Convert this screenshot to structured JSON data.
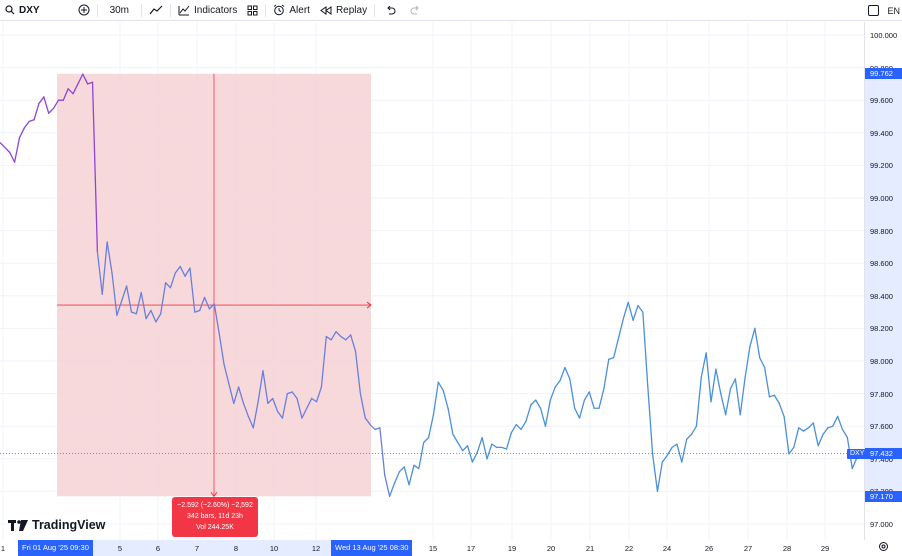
{
  "toolbar": {
    "symbol": "DXY",
    "interval": "30m",
    "indicators_label": "Indicators",
    "alert_label": "Alert",
    "replay_label": "Replay",
    "language": "EN"
  },
  "price_axis": {
    "labels": [
      "100.000",
      "99.800",
      "99.600",
      "99.400",
      "99.200",
      "99.000",
      "98.800",
      "98.600",
      "98.400",
      "98.200",
      "98.000",
      "97.800",
      "97.600",
      "97.400",
      "97.200",
      "97.000"
    ],
    "range_high": "99.762",
    "range_low": "97.170",
    "current": "97.432"
  },
  "time_axis": {
    "labels": [
      "1",
      "5",
      "6",
      "7",
      "8",
      "10",
      "12",
      "15",
      "17",
      "19",
      "20",
      "21",
      "22",
      "24",
      "26",
      "27",
      "28",
      "29"
    ],
    "start_tag": "Fri 01 Aug '25   09:30",
    "end_tag": "Wed 13 Aug '25   08:30"
  },
  "measure": {
    "line1": "−2.592 (−2.60%) −2,592",
    "line2": "342 bars, 11d 23h",
    "line3": "Vol 244.25K"
  },
  "ticker_tag": "DXY",
  "brand": "TradingView",
  "colors": {
    "line_before": "#8e44d6",
    "line_after": "#4a90d9",
    "measure_fill": "#f6d5d8",
    "measure_red": "#f23645",
    "accent": "#2962ff"
  },
  "chart_data": {
    "type": "line",
    "ylim": [
      97.0,
      100.0
    ],
    "series": [
      {
        "values": [
          99.34,
          99.31,
          99.28,
          99.22,
          99.37,
          99.43,
          99.47,
          99.48,
          99.58,
          99.62,
          99.52,
          99.55,
          99.6,
          99.6,
          99.67,
          99.64,
          99.7,
          99.76,
          99.7,
          99.71,
          98.67,
          98.41,
          98.73,
          98.54,
          98.28,
          98.37,
          98.46,
          98.3,
          98.29,
          98.42,
          98.26,
          98.31,
          98.24,
          98.29,
          98.48,
          98.45,
          98.54,
          98.58,
          98.52,
          98.57,
          98.3,
          98.31,
          98.39,
          98.32,
          98.35,
          98.17,
          97.98,
          97.86,
          97.74,
          97.84,
          97.74,
          97.66,
          97.59,
          97.75,
          97.94,
          97.74,
          97.77,
          97.69,
          97.65,
          97.8,
          97.81,
          97.77,
          97.65,
          97.71,
          97.77,
          97.75,
          97.84,
          98.15,
          98.13,
          98.18,
          98.15,
          98.13,
          98.16,
          98.06,
          97.8,
          97.65,
          97.61,
          97.58,
          97.59,
          97.3,
          97.17,
          97.25,
          97.32,
          97.35,
          97.24,
          97.36,
          97.34,
          97.5,
          97.53,
          97.67,
          97.87,
          97.82,
          97.71,
          97.55,
          97.5,
          97.45,
          97.48,
          97.38,
          97.44,
          97.53,
          97.4,
          97.49,
          97.47,
          97.47,
          97.46,
          97.56,
          97.61,
          97.58,
          97.63,
          97.73,
          97.76,
          97.71,
          97.6,
          97.76,
          97.84,
          97.88,
          97.96,
          97.89,
          97.71,
          97.65,
          97.76,
          97.81,
          97.71,
          97.71,
          97.83,
          98.01,
          98.02,
          98.14,
          98.26,
          98.36,
          98.25,
          98.34,
          98.3,
          97.85,
          97.43,
          97.2,
          97.38,
          97.42,
          97.47,
          97.49,
          97.38,
          97.52,
          97.55,
          97.6,
          97.9,
          98.05,
          97.75,
          97.95,
          97.8,
          97.67,
          97.83,
          97.89,
          97.67,
          97.9,
          98.09,
          98.2,
          98.02,
          97.96,
          97.78,
          97.79,
          97.74,
          97.66,
          97.43,
          97.47,
          97.59,
          97.57,
          97.59,
          97.62,
          97.48,
          97.55,
          97.59,
          97.6,
          97.66,
          97.58,
          97.53,
          97.34,
          97.41,
          97.45
        ]
      }
    ]
  }
}
